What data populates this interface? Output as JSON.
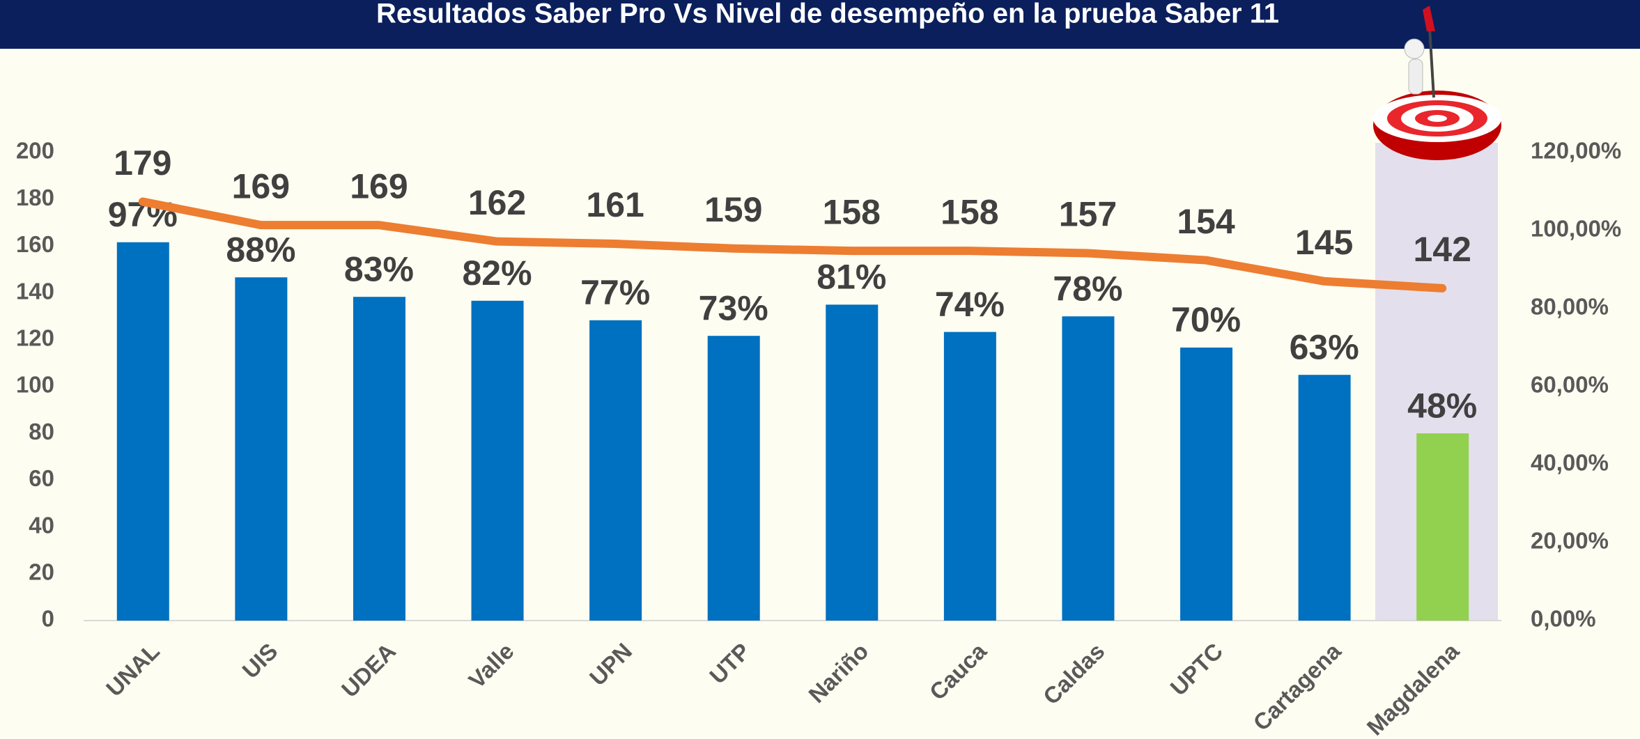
{
  "chart_data": {
    "type": "bar",
    "title": "Resultados Saber Pro Vs Nivel de desempeño en la prueba Saber 11",
    "categories": [
      "UNAL",
      "UIS",
      "UDEA",
      "Valle",
      "UPN",
      "UTP",
      "Nariño",
      "Cauca",
      "Caldas",
      "UPTC",
      "Cartagena",
      "Magdalena"
    ],
    "series": [
      {
        "type": "bar",
        "axis": "y2",
        "colors": [
          "#0070c0",
          "#0070c0",
          "#0070c0",
          "#0070c0",
          "#0070c0",
          "#0070c0",
          "#0070c0",
          "#0070c0",
          "#0070c0",
          "#0070c0",
          "#0070c0",
          "#92d050"
        ],
        "values": [
          97,
          88,
          83,
          82,
          77,
          73,
          81,
          74,
          78,
          70,
          63,
          48
        ],
        "value_labels": [
          "97%",
          "88%",
          "83%",
          "82%",
          "77%",
          "73%",
          "81%",
          "74%",
          "78%",
          "70%",
          "63%",
          "48%"
        ]
      },
      {
        "type": "line",
        "axis": "y",
        "color": "#ed7d31",
        "values": [
          179,
          169,
          169,
          162,
          161,
          159,
          158,
          158,
          157,
          154,
          145,
          142
        ]
      }
    ],
    "ylim": [
      0,
      200
    ],
    "yticks": [
      0,
      20,
      40,
      60,
      80,
      100,
      120,
      140,
      160,
      180,
      200
    ],
    "y2lim": [
      0,
      120
    ],
    "y2ticks": [
      {
        "value": 0,
        "label": "0,00%"
      },
      {
        "value": 20,
        "label": "20,00%"
      },
      {
        "value": 40,
        "label": "40,00%"
      },
      {
        "value": 60,
        "label": "60,00%"
      },
      {
        "value": 80,
        "label": "80,00%"
      },
      {
        "value": 100,
        "label": "100,00%"
      },
      {
        "value": 120,
        "label": "120,00%"
      }
    ],
    "grid": false
  }
}
